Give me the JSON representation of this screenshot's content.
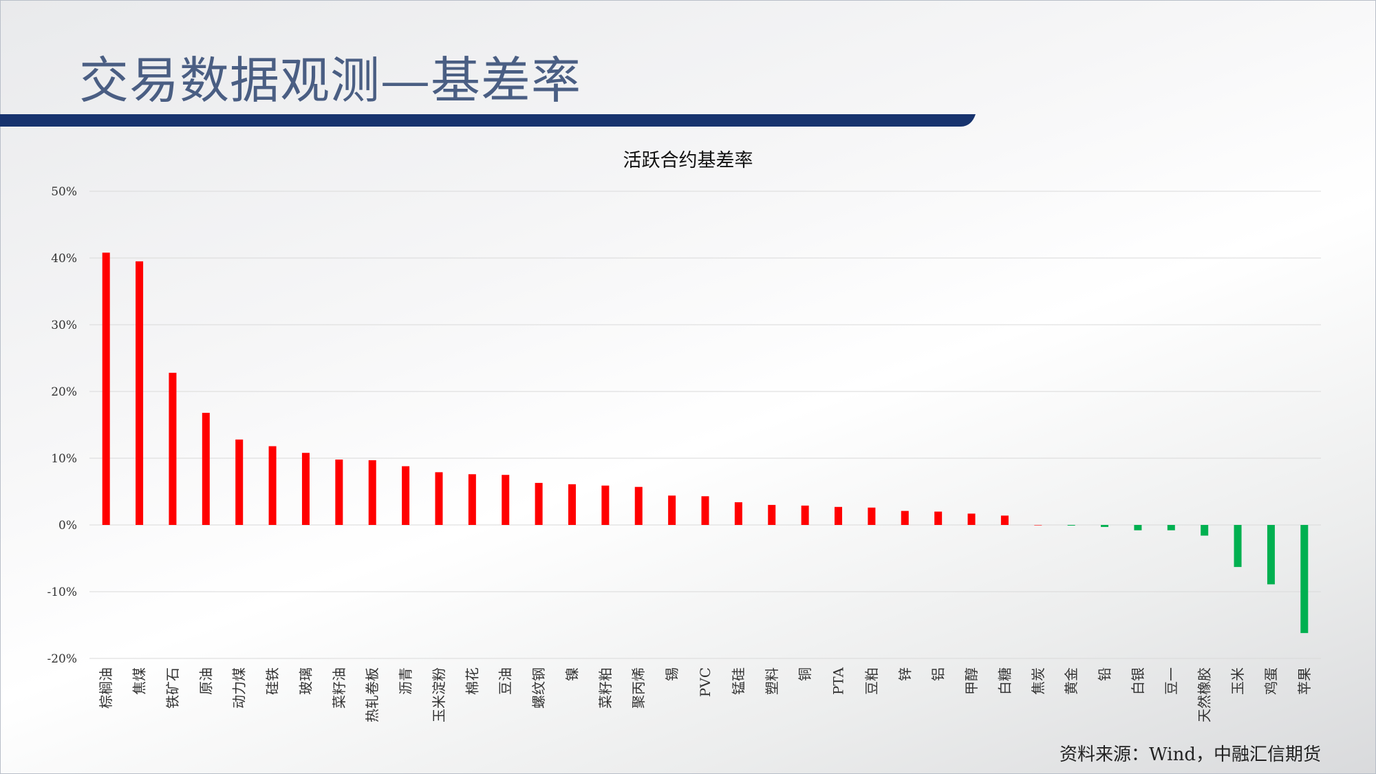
{
  "slide": {
    "title": "交易数据观测—基差率",
    "source": "资料来源：Wind，中融汇信期货"
  },
  "colors": {
    "title": "#4a5e83",
    "title_bar": "#17336e",
    "positive": "#ff0000",
    "negative": "#00b050",
    "grid": "#d9d9d9"
  },
  "chart_data": {
    "type": "bar",
    "title": "活跃合约基差率",
    "xlabel": "",
    "ylabel": "",
    "ylim": [
      -20,
      50
    ],
    "yticks": [
      50,
      40,
      30,
      20,
      10,
      0,
      -10,
      -20
    ],
    "ytick_labels": [
      "50%",
      "40%",
      "30%",
      "20%",
      "10%",
      "0%",
      "-10%",
      "-20%"
    ],
    "grid": true,
    "categories": [
      "棕榈油",
      "焦煤",
      "铁矿石",
      "原油",
      "动力煤",
      "硅铁",
      "玻璃",
      "菜籽油",
      "热轧卷板",
      "沥青",
      "玉米淀粉",
      "棉花",
      "豆油",
      "螺纹钢",
      "镍",
      "菜籽粕",
      "聚丙烯",
      "锡",
      "PVC",
      "锰硅",
      "塑料",
      "铜",
      "PTA",
      "豆粕",
      "锌",
      "铝",
      "甲醇",
      "白糖",
      "焦炭",
      "黄金",
      "铅",
      "白银",
      "豆一",
      "天然橡胶",
      "玉米",
      "鸡蛋",
      "苹果"
    ],
    "values": [
      40.8,
      39.5,
      22.8,
      16.8,
      12.8,
      11.8,
      10.8,
      9.8,
      9.7,
      8.8,
      7.9,
      7.6,
      7.5,
      6.3,
      6.1,
      5.9,
      5.7,
      4.4,
      4.3,
      3.4,
      3.0,
      2.9,
      2.7,
      2.6,
      2.1,
      2.0,
      1.7,
      1.4,
      0.0,
      -0.1,
      -0.3,
      -0.8,
      -0.8,
      -1.6,
      -6.3,
      -8.9,
      -16.2
    ]
  }
}
